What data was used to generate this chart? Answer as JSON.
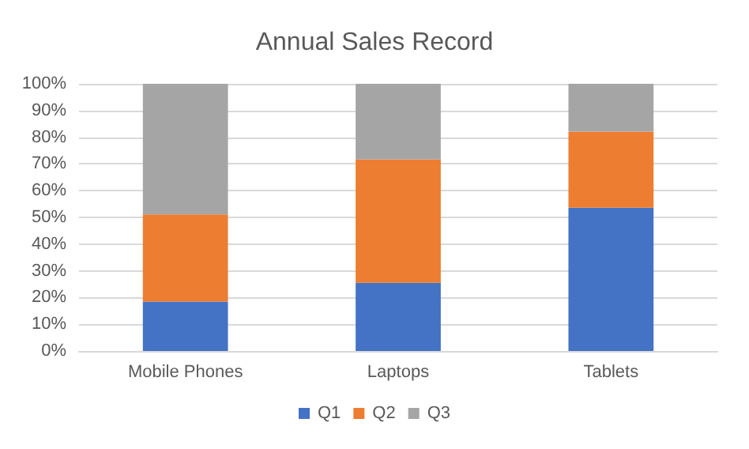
{
  "chart_data": {
    "type": "bar",
    "title": "Annual Sales Record",
    "categories": [
      "Mobile Phones",
      "Laptops",
      "Tablets"
    ],
    "stacked": true,
    "series": [
      {
        "name": "Q1",
        "color": "#4472c4",
        "values": [
          18.5,
          25.5,
          53.6
        ]
      },
      {
        "name": "Q2",
        "color": "#ed7d31",
        "values": [
          32.6,
          46.2,
          28.5
        ]
      },
      {
        "name": "Q3",
        "color": "#a5a5a5",
        "values": [
          48.9,
          28.3,
          17.9
        ]
      }
    ],
    "ylim": [
      0,
      100
    ],
    "yticks": [
      {
        "value": 0,
        "label": "0%"
      },
      {
        "value": 10,
        "label": "10%"
      },
      {
        "value": 20,
        "label": "20%"
      },
      {
        "value": 30,
        "label": "30%"
      },
      {
        "value": 40,
        "label": "40%"
      },
      {
        "value": 50,
        "label": "50%"
      },
      {
        "value": 60,
        "label": "60%"
      },
      {
        "value": 70,
        "label": "70%"
      },
      {
        "value": 80,
        "label": "80%"
      },
      {
        "value": 90,
        "label": "90%"
      },
      {
        "value": 100,
        "label": "100%"
      }
    ],
    "grid": true,
    "legend": "bottom"
  }
}
